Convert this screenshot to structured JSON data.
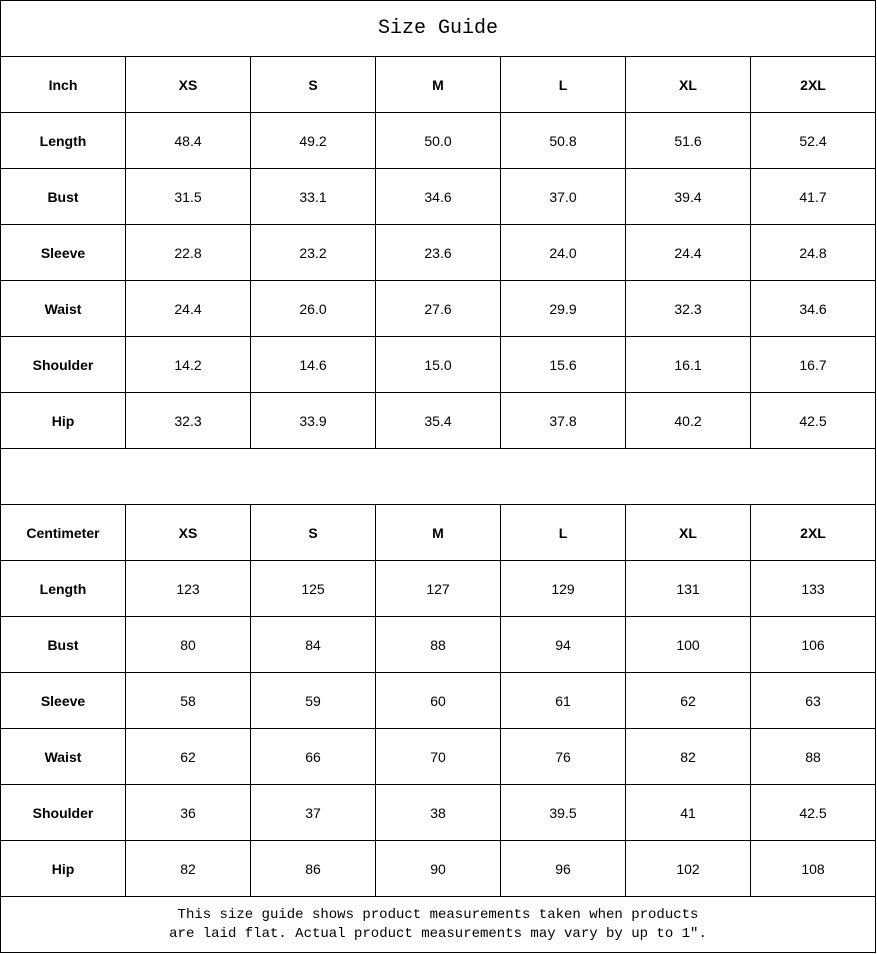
{
  "title": "Size Guide",
  "sizes": [
    "XS",
    "S",
    "M",
    "L",
    "XL",
    "2XL"
  ],
  "inch": {
    "unit": "Inch",
    "rows": [
      {
        "label": "Length",
        "values": [
          "48.4",
          "49.2",
          "50.0",
          "50.8",
          "51.6",
          "52.4"
        ]
      },
      {
        "label": "Bust",
        "values": [
          "31.5",
          "33.1",
          "34.6",
          "37.0",
          "39.4",
          "41.7"
        ]
      },
      {
        "label": "Sleeve",
        "values": [
          "22.8",
          "23.2",
          "23.6",
          "24.0",
          "24.4",
          "24.8"
        ]
      },
      {
        "label": "Waist",
        "values": [
          "24.4",
          "26.0",
          "27.6",
          "29.9",
          "32.3",
          "34.6"
        ]
      },
      {
        "label": "Shoulder",
        "values": [
          "14.2",
          "14.6",
          "15.0",
          "15.6",
          "16.1",
          "16.7"
        ]
      },
      {
        "label": "Hip",
        "values": [
          "32.3",
          "33.9",
          "35.4",
          "37.8",
          "40.2",
          "42.5"
        ]
      }
    ]
  },
  "cm": {
    "unit": "Centimeter",
    "rows": [
      {
        "label": "Length",
        "values": [
          "123",
          "125",
          "127",
          "129",
          "131",
          "133"
        ]
      },
      {
        "label": "Bust",
        "values": [
          "80",
          "84",
          "88",
          "94",
          "100",
          "106"
        ]
      },
      {
        "label": "Sleeve",
        "values": [
          "58",
          "59",
          "60",
          "61",
          "62",
          "63"
        ]
      },
      {
        "label": "Waist",
        "values": [
          "62",
          "66",
          "70",
          "76",
          "82",
          "88"
        ]
      },
      {
        "label": "Shoulder",
        "values": [
          "36",
          "37",
          "38",
          "39.5",
          "41",
          "42.5"
        ]
      },
      {
        "label": "Hip",
        "values": [
          "82",
          "86",
          "90",
          "96",
          "102",
          "108"
        ]
      }
    ]
  },
  "footer": {
    "line1": "This size guide shows product measurements taken when products",
    "line2": "are laid flat. Actual product measurements may vary by up to 1″."
  }
}
